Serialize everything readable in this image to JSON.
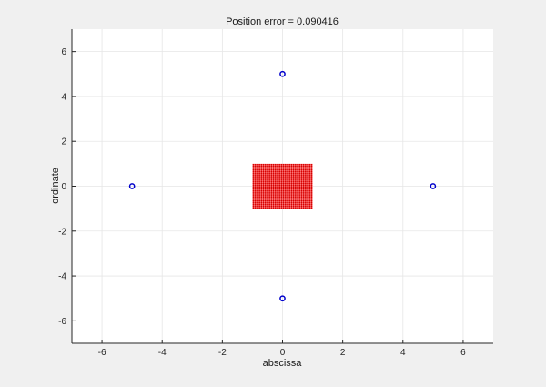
{
  "chart_data": {
    "type": "scatter",
    "title": "Position error = 0.090416",
    "xlabel": "abscissa",
    "ylabel": "ordinate",
    "xlim": [
      -7,
      7
    ],
    "ylim": [
      -7,
      7
    ],
    "xticks": [
      -6,
      -4,
      -2,
      0,
      2,
      4,
      6
    ],
    "yticks": [
      -6,
      -4,
      -2,
      0,
      2,
      4,
      6
    ],
    "grid": true,
    "series": [
      {
        "marker": "circle",
        "color": "#0000cc",
        "points": [
          [
            0,
            5
          ],
          [
            -5,
            0
          ],
          [
            5,
            0
          ],
          [
            0,
            -5
          ]
        ]
      },
      {
        "marker": "dense-dots",
        "color": "#ff2a2a",
        "region": {
          "x": [
            -1,
            1
          ],
          "y": [
            -1,
            1
          ]
        }
      }
    ],
    "colors": {
      "figure_bg": "#f0f0f0",
      "axes_bg": "#ffffff",
      "grid": "#e6e6e6",
      "axis": "#262626"
    }
  }
}
